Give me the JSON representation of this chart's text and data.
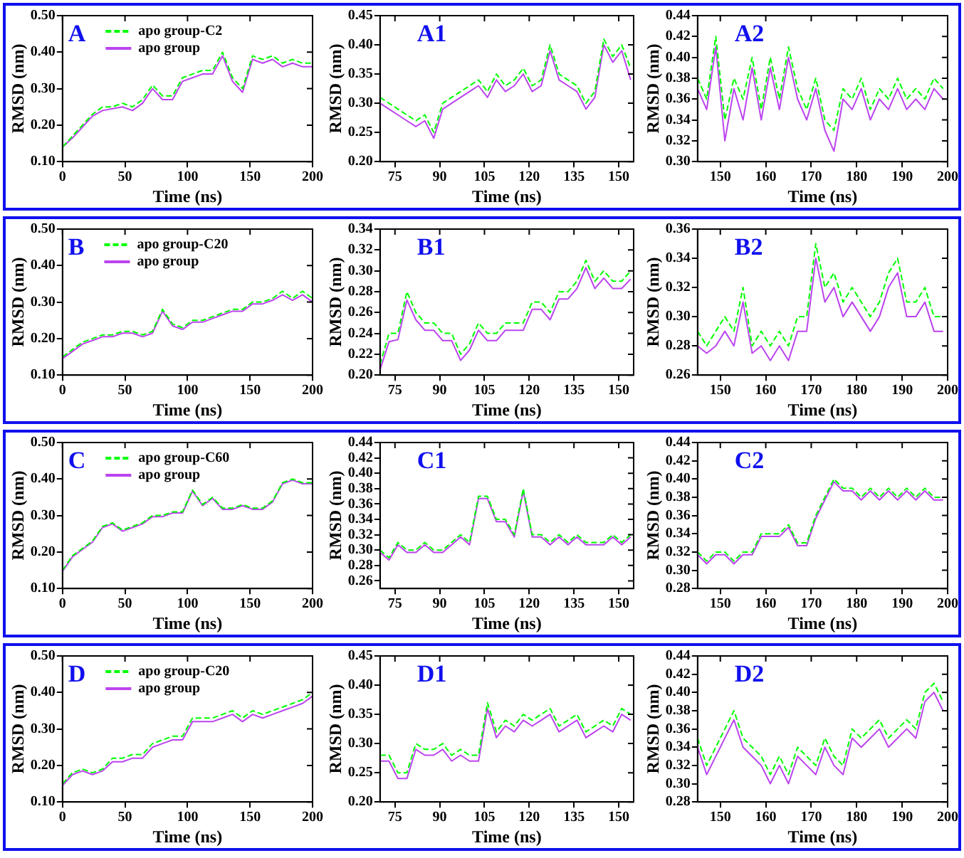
{
  "chart_data": [
    {
      "type": "line",
      "title": "A",
      "xlabel": "Time (ns)",
      "ylabel": "RMSD (nm)",
      "legend": "top left",
      "marker": "none",
      "grid": false,
      "xlim": [
        0,
        200
      ],
      "xticks": [
        0,
        50,
        100,
        150,
        200
      ],
      "ylim": [
        0.1,
        0.5
      ],
      "yticks": [
        {
          "value": 0.1,
          "label": "0.10"
        },
        {
          "value": 0.2,
          "label": "0.20"
        },
        {
          "value": 0.3,
          "label": "0.30"
        },
        {
          "value": 0.4,
          "label": "0.40"
        },
        {
          "value": 0.5,
          "label": "0.50"
        }
      ],
      "x": [
        0,
        8,
        16,
        24,
        32,
        40,
        48,
        56,
        64,
        72,
        80,
        88,
        96,
        104,
        112,
        120,
        128,
        136,
        144,
        152,
        160,
        168,
        176,
        184,
        192,
        200
      ],
      "series": [
        {
          "name": "apo group-C2",
          "color": "#00ff00",
          "line_style": "dashed",
          "values": [
            0.14,
            0.17,
            0.2,
            0.23,
            0.25,
            0.25,
            0.26,
            0.25,
            0.27,
            0.31,
            0.28,
            0.28,
            0.33,
            0.34,
            0.35,
            0.35,
            0.4,
            0.33,
            0.3,
            0.39,
            0.38,
            0.39,
            0.37,
            0.38,
            0.37,
            0.37
          ]
        },
        {
          "name": "apo group",
          "color": "#bb44ee",
          "line_style": "solid",
          "values": [
            0.14,
            0.165,
            0.195,
            0.225,
            0.24,
            0.245,
            0.25,
            0.24,
            0.26,
            0.3,
            0.27,
            0.27,
            0.32,
            0.33,
            0.34,
            0.34,
            0.39,
            0.32,
            0.29,
            0.38,
            0.37,
            0.38,
            0.36,
            0.37,
            0.36,
            0.36
          ]
        }
      ]
    },
    {
      "type": "line",
      "title": "A1",
      "xlabel": "Time (ns)",
      "ylabel": "RMSD (nm)",
      "marker": "none",
      "grid": false,
      "xlim": [
        70,
        155
      ],
      "xticks": [
        75,
        90,
        105,
        120,
        135,
        150
      ],
      "ylim": [
        0.2,
        0.45
      ],
      "yticks": [
        {
          "value": 0.2,
          "label": "0.20"
        },
        {
          "value": 0.25,
          "label": "0.25"
        },
        {
          "value": 0.3,
          "label": "0.30"
        },
        {
          "value": 0.35,
          "label": "0.35"
        },
        {
          "value": 0.4,
          "label": "0.40"
        },
        {
          "value": 0.45,
          "label": "0.45"
        }
      ],
      "x": [
        70,
        73,
        76,
        79,
        82,
        85,
        88,
        91,
        94,
        97,
        100,
        103,
        106,
        109,
        112,
        115,
        118,
        121,
        124,
        127,
        130,
        133,
        136,
        139,
        142,
        145,
        148,
        151,
        154
      ],
      "series": [
        {
          "color": "#00ff00",
          "line_style": "dashed",
          "values": [
            0.31,
            0.3,
            0.29,
            0.28,
            0.27,
            0.28,
            0.25,
            0.3,
            0.31,
            0.32,
            0.33,
            0.34,
            0.32,
            0.35,
            0.33,
            0.34,
            0.36,
            0.33,
            0.34,
            0.4,
            0.35,
            0.34,
            0.33,
            0.3,
            0.32,
            0.41,
            0.38,
            0.4,
            0.36
          ]
        },
        {
          "color": "#bb44ee",
          "line_style": "solid",
          "values": [
            0.3,
            0.29,
            0.28,
            0.27,
            0.26,
            0.27,
            0.24,
            0.29,
            0.3,
            0.31,
            0.32,
            0.33,
            0.31,
            0.34,
            0.32,
            0.33,
            0.35,
            0.32,
            0.33,
            0.39,
            0.34,
            0.33,
            0.32,
            0.29,
            0.31,
            0.4,
            0.37,
            0.39,
            0.34
          ]
        }
      ]
    },
    {
      "type": "line",
      "title": "A2",
      "xlabel": "Time (ns)",
      "ylabel": "RMSD (nm)",
      "marker": "none",
      "grid": false,
      "xlim": [
        145,
        200
      ],
      "xticks": [
        150,
        160,
        170,
        180,
        190,
        200
      ],
      "ylim": [
        0.3,
        0.44
      ],
      "yticks": [
        {
          "value": 0.3,
          "label": "0.30"
        },
        {
          "value": 0.32,
          "label": "0.32"
        },
        {
          "value": 0.34,
          "label": "0.34"
        },
        {
          "value": 0.36,
          "label": "0.36"
        },
        {
          "value": 0.38,
          "label": "0.38"
        },
        {
          "value": 0.4,
          "label": "0.40"
        },
        {
          "value": 0.42,
          "label": "0.42"
        },
        {
          "value": 0.44,
          "label": "0.44"
        }
      ],
      "x": [
        145,
        147,
        149,
        151,
        153,
        155,
        157,
        159,
        161,
        163,
        165,
        167,
        169,
        171,
        173,
        175,
        177,
        179,
        181,
        183,
        185,
        187,
        189,
        191,
        193,
        195,
        197,
        199
      ],
      "series": [
        {
          "color": "#00ff00",
          "line_style": "dashed",
          "values": [
            0.38,
            0.36,
            0.42,
            0.34,
            0.38,
            0.36,
            0.4,
            0.35,
            0.4,
            0.36,
            0.41,
            0.37,
            0.35,
            0.38,
            0.34,
            0.33,
            0.37,
            0.36,
            0.38,
            0.35,
            0.37,
            0.36,
            0.38,
            0.36,
            0.37,
            0.36,
            0.38,
            0.37
          ]
        },
        {
          "color": "#bb44ee",
          "line_style": "solid",
          "values": [
            0.37,
            0.35,
            0.41,
            0.32,
            0.37,
            0.34,
            0.39,
            0.34,
            0.39,
            0.35,
            0.4,
            0.36,
            0.34,
            0.37,
            0.33,
            0.31,
            0.36,
            0.35,
            0.37,
            0.34,
            0.36,
            0.35,
            0.37,
            0.35,
            0.36,
            0.35,
            0.37,
            0.36
          ]
        }
      ]
    },
    {
      "type": "line",
      "title": "B",
      "xlabel": "Time (ns)",
      "ylabel": "RMSD (nm)",
      "legend": "top left",
      "marker": "none",
      "grid": false,
      "xlim": [
        0,
        200
      ],
      "xticks": [
        0,
        50,
        100,
        150,
        200
      ],
      "ylim": [
        0.1,
        0.5
      ],
      "yticks": [
        {
          "value": 0.1,
          "label": "0.10"
        },
        {
          "value": 0.2,
          "label": "0.20"
        },
        {
          "value": 0.3,
          "label": "0.30"
        },
        {
          "value": 0.4,
          "label": "0.40"
        },
        {
          "value": 0.5,
          "label": "0.50"
        }
      ],
      "x": [
        0,
        8,
        16,
        24,
        32,
        40,
        48,
        56,
        64,
        72,
        80,
        88,
        96,
        104,
        112,
        120,
        128,
        136,
        144,
        152,
        160,
        168,
        176,
        184,
        192,
        200
      ],
      "series": [
        {
          "name": "apo group-C20",
          "color": "#00ff00",
          "line_style": "dashed",
          "values": [
            0.15,
            0.17,
            0.19,
            0.2,
            0.21,
            0.21,
            0.22,
            0.22,
            0.21,
            0.22,
            0.28,
            0.24,
            0.23,
            0.25,
            0.25,
            0.26,
            0.27,
            0.28,
            0.28,
            0.3,
            0.3,
            0.31,
            0.33,
            0.31,
            0.33,
            0.31
          ]
        },
        {
          "name": "apo group",
          "color": "#bb44ee",
          "line_style": "solid",
          "values": [
            0.145,
            0.165,
            0.185,
            0.195,
            0.205,
            0.205,
            0.215,
            0.215,
            0.205,
            0.215,
            0.275,
            0.235,
            0.225,
            0.245,
            0.245,
            0.255,
            0.265,
            0.275,
            0.275,
            0.295,
            0.295,
            0.305,
            0.32,
            0.305,
            0.32,
            0.3
          ]
        }
      ]
    },
    {
      "type": "line",
      "title": "B1",
      "xlabel": "Time (ns)",
      "ylabel": "RMSD (nm)",
      "marker": "none",
      "grid": false,
      "xlim": [
        70,
        155
      ],
      "xticks": [
        75,
        90,
        105,
        120,
        135,
        150
      ],
      "ylim": [
        0.2,
        0.34
      ],
      "yticks": [
        {
          "value": 0.2,
          "label": "0.20"
        },
        {
          "value": 0.22,
          "label": "0.22"
        },
        {
          "value": 0.24,
          "label": "0.24"
        },
        {
          "value": 0.26,
          "label": "0.26"
        },
        {
          "value": 0.28,
          "label": "0.28"
        },
        {
          "value": 0.3,
          "label": "0.30"
        },
        {
          "value": 0.32,
          "label": "0.32"
        },
        {
          "value": 0.34,
          "label": "0.34"
        }
      ],
      "x": [
        70,
        73,
        76,
        79,
        82,
        85,
        88,
        91,
        94,
        97,
        100,
        103,
        106,
        109,
        112,
        115,
        118,
        121,
        124,
        127,
        130,
        133,
        136,
        139,
        142,
        145,
        148,
        151,
        154
      ],
      "series": [
        {
          "color": "#00ff00",
          "line_style": "dashed",
          "values": [
            0.21,
            0.24,
            0.24,
            0.28,
            0.26,
            0.25,
            0.25,
            0.24,
            0.24,
            0.22,
            0.23,
            0.25,
            0.24,
            0.24,
            0.25,
            0.25,
            0.25,
            0.27,
            0.27,
            0.26,
            0.28,
            0.28,
            0.29,
            0.31,
            0.29,
            0.3,
            0.29,
            0.29,
            0.3
          ]
        },
        {
          "color": "#bb44ee",
          "line_style": "solid",
          "values": [
            0.205,
            0.232,
            0.234,
            0.272,
            0.253,
            0.243,
            0.243,
            0.233,
            0.233,
            0.214,
            0.224,
            0.243,
            0.233,
            0.233,
            0.243,
            0.243,
            0.243,
            0.263,
            0.263,
            0.253,
            0.273,
            0.273,
            0.283,
            0.303,
            0.283,
            0.293,
            0.283,
            0.283,
            0.292
          ]
        }
      ]
    },
    {
      "type": "line",
      "title": "B2",
      "xlabel": "Time (ns)",
      "ylabel": "RMSD (nm)",
      "marker": "none",
      "grid": false,
      "xlim": [
        145,
        200
      ],
      "xticks": [
        150,
        160,
        170,
        180,
        190,
        200
      ],
      "ylim": [
        0.26,
        0.36
      ],
      "yticks": [
        {
          "value": 0.26,
          "label": "0.26"
        },
        {
          "value": 0.28,
          "label": "0.28"
        },
        {
          "value": 0.3,
          "label": "0.30"
        },
        {
          "value": 0.32,
          "label": "0.32"
        },
        {
          "value": 0.34,
          "label": "0.34"
        },
        {
          "value": 0.36,
          "label": "0.36"
        }
      ],
      "x": [
        145,
        147,
        149,
        151,
        153,
        155,
        157,
        159,
        161,
        163,
        165,
        167,
        169,
        171,
        173,
        175,
        177,
        179,
        181,
        183,
        185,
        187,
        189,
        191,
        193,
        195,
        197,
        199
      ],
      "series": [
        {
          "color": "#00ff00",
          "line_style": "dashed",
          "values": [
            0.29,
            0.28,
            0.29,
            0.3,
            0.29,
            0.32,
            0.28,
            0.29,
            0.28,
            0.29,
            0.28,
            0.3,
            0.3,
            0.35,
            0.32,
            0.33,
            0.31,
            0.32,
            0.31,
            0.3,
            0.31,
            0.33,
            0.34,
            0.31,
            0.31,
            0.32,
            0.3,
            0.3
          ]
        },
        {
          "color": "#bb44ee",
          "line_style": "solid",
          "values": [
            0.28,
            0.275,
            0.28,
            0.29,
            0.28,
            0.31,
            0.275,
            0.28,
            0.27,
            0.28,
            0.27,
            0.29,
            0.29,
            0.34,
            0.31,
            0.32,
            0.3,
            0.31,
            0.3,
            0.29,
            0.3,
            0.32,
            0.33,
            0.3,
            0.3,
            0.31,
            0.29,
            0.29
          ]
        }
      ]
    },
    {
      "type": "line",
      "title": "C",
      "xlabel": "Time (ns)",
      "ylabel": "RMSD (nm)",
      "legend": "top left",
      "marker": "none",
      "grid": false,
      "xlim": [
        0,
        200
      ],
      "xticks": [
        0,
        50,
        100,
        150,
        200
      ],
      "ylim": [
        0.1,
        0.5
      ],
      "yticks": [
        {
          "value": 0.1,
          "label": "0.10"
        },
        {
          "value": 0.2,
          "label": "0.20"
        },
        {
          "value": 0.3,
          "label": "0.30"
        },
        {
          "value": 0.4,
          "label": "0.40"
        },
        {
          "value": 0.5,
          "label": "0.50"
        }
      ],
      "x": [
        0,
        8,
        16,
        24,
        32,
        40,
        48,
        56,
        64,
        72,
        80,
        88,
        96,
        104,
        112,
        120,
        128,
        136,
        144,
        152,
        160,
        168,
        176,
        184,
        192,
        200
      ],
      "series": [
        {
          "name": "apo group-C60",
          "color": "#00ff00",
          "line_style": "dashed",
          "values": [
            0.15,
            0.19,
            0.21,
            0.23,
            0.27,
            0.28,
            0.26,
            0.27,
            0.28,
            0.3,
            0.3,
            0.31,
            0.31,
            0.37,
            0.33,
            0.35,
            0.32,
            0.32,
            0.33,
            0.32,
            0.32,
            0.34,
            0.39,
            0.4,
            0.39,
            0.39
          ]
        },
        {
          "name": "apo group",
          "color": "#bb44ee",
          "line_style": "solid",
          "values": [
            0.147,
            0.187,
            0.207,
            0.227,
            0.267,
            0.277,
            0.257,
            0.267,
            0.277,
            0.297,
            0.297,
            0.307,
            0.307,
            0.367,
            0.327,
            0.347,
            0.317,
            0.317,
            0.327,
            0.317,
            0.317,
            0.337,
            0.387,
            0.397,
            0.387,
            0.387
          ]
        }
      ]
    },
    {
      "type": "line",
      "title": "C1",
      "xlabel": "Time (ns)",
      "ylabel": "RMSD (nm)",
      "marker": "none",
      "grid": false,
      "xlim": [
        70,
        155
      ],
      "xticks": [
        75,
        90,
        105,
        120,
        135,
        150
      ],
      "ylim": [
        0.25,
        0.44
      ],
      "yticks": [
        {
          "value": 0.26,
          "label": "0.26"
        },
        {
          "value": 0.28,
          "label": "0.28"
        },
        {
          "value": 0.3,
          "label": "0.30"
        },
        {
          "value": 0.32,
          "label": "0.32"
        },
        {
          "value": 0.34,
          "label": "0.34"
        },
        {
          "value": 0.36,
          "label": "0.36"
        },
        {
          "value": 0.38,
          "label": "0.38"
        },
        {
          "value": 0.4,
          "label": "0.40"
        },
        {
          "value": 0.42,
          "label": "0.42"
        },
        {
          "value": 0.44,
          "label": "0.44"
        }
      ],
      "x": [
        70,
        73,
        76,
        79,
        82,
        85,
        88,
        91,
        94,
        97,
        100,
        103,
        106,
        109,
        112,
        115,
        118,
        121,
        124,
        127,
        130,
        133,
        136,
        139,
        142,
        145,
        148,
        151,
        154
      ],
      "series": [
        {
          "color": "#00ff00",
          "line_style": "dashed",
          "values": [
            0.3,
            0.29,
            0.31,
            0.3,
            0.3,
            0.31,
            0.3,
            0.3,
            0.31,
            0.32,
            0.31,
            0.37,
            0.37,
            0.34,
            0.34,
            0.32,
            0.38,
            0.32,
            0.32,
            0.31,
            0.32,
            0.31,
            0.32,
            0.31,
            0.31,
            0.31,
            0.32,
            0.31,
            0.32
          ]
        },
        {
          "color": "#bb44ee",
          "line_style": "solid",
          "values": [
            0.297,
            0.287,
            0.307,
            0.297,
            0.297,
            0.307,
            0.297,
            0.297,
            0.307,
            0.317,
            0.307,
            0.367,
            0.367,
            0.337,
            0.337,
            0.317,
            0.377,
            0.317,
            0.317,
            0.307,
            0.317,
            0.307,
            0.317,
            0.307,
            0.307,
            0.307,
            0.317,
            0.307,
            0.317
          ]
        }
      ]
    },
    {
      "type": "line",
      "title": "C2",
      "xlabel": "Time (ns)",
      "ylabel": "RMSD (nm)",
      "marker": "none",
      "grid": false,
      "xlim": [
        145,
        200
      ],
      "xticks": [
        150,
        160,
        170,
        180,
        190,
        200
      ],
      "ylim": [
        0.28,
        0.44
      ],
      "yticks": [
        {
          "value": 0.28,
          "label": "0.28"
        },
        {
          "value": 0.3,
          "label": "0.30"
        },
        {
          "value": 0.32,
          "label": "0.32"
        },
        {
          "value": 0.34,
          "label": "0.34"
        },
        {
          "value": 0.36,
          "label": "0.36"
        },
        {
          "value": 0.38,
          "label": "0.38"
        },
        {
          "value": 0.4,
          "label": "0.40"
        },
        {
          "value": 0.42,
          "label": "0.42"
        },
        {
          "value": 0.44,
          "label": "0.44"
        }
      ],
      "x": [
        145,
        147,
        149,
        151,
        153,
        155,
        157,
        159,
        161,
        163,
        165,
        167,
        169,
        171,
        173,
        175,
        177,
        179,
        181,
        183,
        185,
        187,
        189,
        191,
        193,
        195,
        197,
        199
      ],
      "series": [
        {
          "color": "#00ff00",
          "line_style": "dashed",
          "values": [
            0.32,
            0.31,
            0.32,
            0.32,
            0.31,
            0.32,
            0.32,
            0.34,
            0.34,
            0.34,
            0.35,
            0.33,
            0.33,
            0.36,
            0.38,
            0.4,
            0.39,
            0.39,
            0.38,
            0.39,
            0.38,
            0.39,
            0.38,
            0.39,
            0.38,
            0.39,
            0.38,
            0.38
          ]
        },
        {
          "color": "#bb44ee",
          "line_style": "solid",
          "values": [
            0.317,
            0.307,
            0.317,
            0.317,
            0.307,
            0.317,
            0.317,
            0.337,
            0.337,
            0.337,
            0.347,
            0.327,
            0.327,
            0.357,
            0.377,
            0.397,
            0.387,
            0.387,
            0.377,
            0.387,
            0.377,
            0.387,
            0.377,
            0.387,
            0.377,
            0.387,
            0.377,
            0.377
          ]
        }
      ]
    },
    {
      "type": "line",
      "title": "D",
      "xlabel": "Time (ns)",
      "ylabel": "RMSD (nm)",
      "legend": "top left",
      "marker": "none",
      "grid": false,
      "xlim": [
        0,
        200
      ],
      "xticks": [
        0,
        50,
        100,
        150,
        200
      ],
      "ylim": [
        0.1,
        0.5
      ],
      "yticks": [
        {
          "value": 0.1,
          "label": "0.10"
        },
        {
          "value": 0.2,
          "label": "0.20"
        },
        {
          "value": 0.3,
          "label": "0.30"
        },
        {
          "value": 0.4,
          "label": "0.40"
        },
        {
          "value": 0.5,
          "label": "0.50"
        }
      ],
      "x": [
        0,
        8,
        16,
        24,
        32,
        40,
        48,
        56,
        64,
        72,
        80,
        88,
        96,
        104,
        112,
        120,
        128,
        136,
        144,
        152,
        160,
        168,
        176,
        184,
        192,
        200
      ],
      "series": [
        {
          "name": "apo group-C20",
          "color": "#00ff00",
          "line_style": "dashed",
          "values": [
            0.15,
            0.18,
            0.19,
            0.18,
            0.19,
            0.22,
            0.22,
            0.23,
            0.23,
            0.26,
            0.27,
            0.28,
            0.28,
            0.33,
            0.33,
            0.33,
            0.34,
            0.35,
            0.33,
            0.35,
            0.34,
            0.35,
            0.36,
            0.37,
            0.38,
            0.4
          ]
        },
        {
          "name": "apo group",
          "color": "#bb44ee",
          "line_style": "solid",
          "values": [
            0.145,
            0.175,
            0.185,
            0.175,
            0.185,
            0.21,
            0.21,
            0.22,
            0.22,
            0.25,
            0.26,
            0.27,
            0.27,
            0.32,
            0.32,
            0.32,
            0.33,
            0.34,
            0.32,
            0.34,
            0.33,
            0.34,
            0.35,
            0.36,
            0.37,
            0.39
          ]
        }
      ]
    },
    {
      "type": "line",
      "title": "D1",
      "xlabel": "Time (ns)",
      "ylabel": "RMSD (nm)",
      "marker": "none",
      "grid": false,
      "xlim": [
        70,
        155
      ],
      "xticks": [
        75,
        90,
        105,
        120,
        135,
        150
      ],
      "ylim": [
        0.2,
        0.45
      ],
      "yticks": [
        {
          "value": 0.2,
          "label": "0.20"
        },
        {
          "value": 0.25,
          "label": "0.25"
        },
        {
          "value": 0.3,
          "label": "0.30"
        },
        {
          "value": 0.35,
          "label": "0.35"
        },
        {
          "value": 0.4,
          "label": "0.40"
        },
        {
          "value": 0.45,
          "label": "0.45"
        }
      ],
      "x": [
        70,
        73,
        76,
        79,
        82,
        85,
        88,
        91,
        94,
        97,
        100,
        103,
        106,
        109,
        112,
        115,
        118,
        121,
        124,
        127,
        130,
        133,
        136,
        139,
        142,
        145,
        148,
        151,
        154
      ],
      "series": [
        {
          "color": "#00ff00",
          "line_style": "dashed",
          "values": [
            0.28,
            0.28,
            0.25,
            0.25,
            0.3,
            0.29,
            0.29,
            0.3,
            0.28,
            0.29,
            0.28,
            0.28,
            0.37,
            0.32,
            0.34,
            0.33,
            0.35,
            0.34,
            0.35,
            0.36,
            0.33,
            0.34,
            0.35,
            0.32,
            0.33,
            0.34,
            0.33,
            0.36,
            0.35
          ]
        },
        {
          "color": "#bb44ee",
          "line_style": "solid",
          "values": [
            0.27,
            0.27,
            0.24,
            0.24,
            0.29,
            0.28,
            0.28,
            0.29,
            0.27,
            0.28,
            0.27,
            0.27,
            0.36,
            0.31,
            0.33,
            0.32,
            0.34,
            0.33,
            0.34,
            0.35,
            0.32,
            0.33,
            0.34,
            0.31,
            0.32,
            0.33,
            0.32,
            0.35,
            0.34
          ]
        }
      ]
    },
    {
      "type": "line",
      "title": "D2",
      "xlabel": "Time (ns)",
      "ylabel": "RMSD (nm)",
      "marker": "none",
      "grid": false,
      "xlim": [
        145,
        200
      ],
      "xticks": [
        150,
        160,
        170,
        180,
        190,
        200
      ],
      "ylim": [
        0.28,
        0.44
      ],
      "yticks": [
        {
          "value": 0.28,
          "label": "0.28"
        },
        {
          "value": 0.3,
          "label": "0.30"
        },
        {
          "value": 0.32,
          "label": "0.32"
        },
        {
          "value": 0.34,
          "label": "0.34"
        },
        {
          "value": 0.36,
          "label": "0.36"
        },
        {
          "value": 0.38,
          "label": "0.38"
        },
        {
          "value": 0.4,
          "label": "0.40"
        },
        {
          "value": 0.42,
          "label": "0.42"
        },
        {
          "value": 0.44,
          "label": "0.44"
        }
      ],
      "x": [
        145,
        147,
        149,
        151,
        153,
        155,
        157,
        159,
        161,
        163,
        165,
        167,
        169,
        171,
        173,
        175,
        177,
        179,
        181,
        183,
        185,
        187,
        189,
        191,
        193,
        195,
        197,
        199
      ],
      "series": [
        {
          "color": "#00ff00",
          "line_style": "dashed",
          "values": [
            0.35,
            0.32,
            0.34,
            0.36,
            0.38,
            0.35,
            0.34,
            0.33,
            0.31,
            0.33,
            0.31,
            0.34,
            0.33,
            0.32,
            0.35,
            0.33,
            0.32,
            0.36,
            0.35,
            0.36,
            0.37,
            0.35,
            0.36,
            0.37,
            0.36,
            0.4,
            0.41,
            0.39
          ]
        },
        {
          "color": "#bb44ee",
          "line_style": "solid",
          "values": [
            0.34,
            0.31,
            0.33,
            0.35,
            0.37,
            0.34,
            0.33,
            0.32,
            0.3,
            0.32,
            0.3,
            0.33,
            0.32,
            0.31,
            0.34,
            0.32,
            0.31,
            0.35,
            0.34,
            0.35,
            0.36,
            0.34,
            0.35,
            0.36,
            0.35,
            0.39,
            0.4,
            0.38
          ]
        }
      ]
    }
  ]
}
